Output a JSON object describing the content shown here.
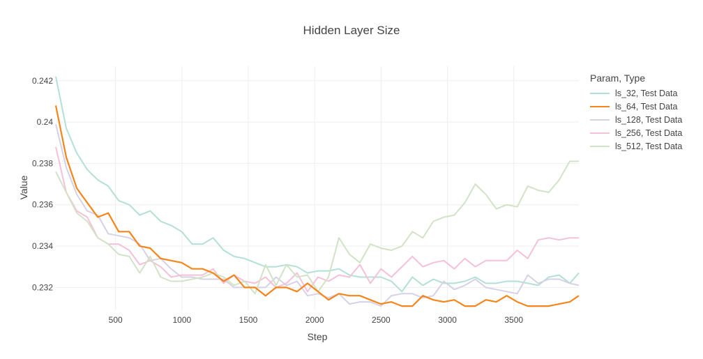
{
  "chart_data": {
    "type": "line",
    "title": "Hidden Layer Size",
    "xlabel": "Step",
    "ylabel": "Value",
    "xlim": [
      50,
      3990
    ],
    "ylim": [
      0.2309,
      0.2427
    ],
    "xticks": [
      500,
      1000,
      1500,
      2000,
      2500,
      3000,
      3500
    ],
    "xtick_labels": [
      "500",
      "1000",
      "1500",
      "2000",
      "2500",
      "3000",
      "3500"
    ],
    "yticks": [
      0.232,
      0.234,
      0.236,
      0.238,
      0.24,
      0.242
    ],
    "ytick_labels": [
      "0.232",
      "0.234",
      "0.236",
      "0.238",
      "0.24",
      "0.242"
    ],
    "grid": true,
    "legend_position": "top-right",
    "legend_title": "Param, Type",
    "x": [
      50,
      129,
      208,
      287,
      366,
      445,
      524,
      603,
      682,
      761,
      840,
      919,
      998,
      1077,
      1156,
      1235,
      1314,
      1393,
      1472,
      1551,
      1630,
      1709,
      1788,
      1867,
      1946,
      2025,
      2104,
      2183,
      2262,
      2341,
      2420,
      2499,
      2578,
      2657,
      2736,
      2815,
      2894,
      2973,
      3052,
      3131,
      3210,
      3289,
      3368,
      3447,
      3526,
      3605,
      3684,
      3763,
      3842,
      3921,
      3990
    ],
    "series": [
      {
        "name": "ls_32, Test Data",
        "color": "#b3e0d6",
        "width": 2,
        "values": [
          0.2422,
          0.2397,
          0.2385,
          0.2377,
          0.2372,
          0.2369,
          0.2362,
          0.236,
          0.2355,
          0.2357,
          0.2352,
          0.235,
          0.2347,
          0.2341,
          0.2341,
          0.2344,
          0.2338,
          0.2335,
          0.2334,
          0.2332,
          0.233,
          0.233,
          0.2331,
          0.233,
          0.2327,
          0.2328,
          0.2328,
          0.2329,
          0.2326,
          0.2325,
          0.2325,
          0.2325,
          0.2323,
          0.2318,
          0.2325,
          0.2321,
          0.2324,
          0.2322,
          0.2322,
          0.2323,
          0.2325,
          0.2322,
          0.2322,
          0.2323,
          0.2323,
          0.2322,
          0.2321,
          0.2325,
          0.2326,
          0.2322,
          0.2327
        ]
      },
      {
        "name": "ls_64, Test Data",
        "color": "#f58518",
        "width": 2.2,
        "values": [
          0.2408,
          0.2383,
          0.2368,
          0.2361,
          0.2354,
          0.2356,
          0.2347,
          0.2347,
          0.234,
          0.2339,
          0.2334,
          0.2333,
          0.2332,
          0.2329,
          0.2329,
          0.2327,
          0.2323,
          0.2326,
          0.232,
          0.232,
          0.2316,
          0.232,
          0.232,
          0.2318,
          0.2322,
          0.2318,
          0.2314,
          0.2317,
          0.2316,
          0.2316,
          0.2314,
          0.2312,
          0.2313,
          0.2311,
          0.2311,
          0.2316,
          0.2314,
          0.2313,
          0.2314,
          0.2311,
          0.2311,
          0.2314,
          0.2313,
          0.2316,
          0.2313,
          0.2311,
          0.2311,
          0.2311,
          0.2312,
          0.2313,
          0.2316
        ]
      },
      {
        "name": "ls_128, Test Data",
        "color": "#d6d1e6",
        "width": 2,
        "values": [
          0.2399,
          0.2378,
          0.2365,
          0.2357,
          0.2355,
          0.2346,
          0.2345,
          0.2344,
          0.2341,
          0.2333,
          0.2334,
          0.2329,
          0.2325,
          0.2325,
          0.2324,
          0.2324,
          0.2324,
          0.232,
          0.232,
          0.232,
          0.232,
          0.2325,
          0.2321,
          0.2323,
          0.2316,
          0.2317,
          0.2315,
          0.2317,
          0.2312,
          0.2313,
          0.2313,
          0.2311,
          0.2316,
          0.2317,
          0.2317,
          0.2315,
          0.2316,
          0.2323,
          0.2319,
          0.2321,
          0.2324,
          0.232,
          0.2319,
          0.2318,
          0.2317,
          0.2326,
          0.2322,
          0.2324,
          0.2324,
          0.2322,
          0.2321
        ]
      },
      {
        "name": "ls_256, Test Data",
        "color": "#f5c0d8",
        "width": 2,
        "values": [
          0.2388,
          0.2366,
          0.2357,
          0.2354,
          0.2344,
          0.2341,
          0.2341,
          0.2338,
          0.2331,
          0.2333,
          0.233,
          0.2325,
          0.2326,
          0.2326,
          0.2326,
          0.2329,
          0.2322,
          0.2326,
          0.2323,
          0.2322,
          0.2325,
          0.232,
          0.2322,
          0.2327,
          0.2318,
          0.2325,
          0.2323,
          0.2326,
          0.2325,
          0.2331,
          0.2322,
          0.2329,
          0.2325,
          0.233,
          0.2335,
          0.233,
          0.2332,
          0.2333,
          0.2329,
          0.2334,
          0.233,
          0.2333,
          0.2333,
          0.2333,
          0.2338,
          0.2334,
          0.2343,
          0.2344,
          0.2343,
          0.2344,
          0.2344
        ]
      },
      {
        "name": "ls_512, Test Data",
        "color": "#d1e3c6",
        "width": 2,
        "values": [
          0.2376,
          0.2366,
          0.2356,
          0.2352,
          0.2344,
          0.2341,
          0.2336,
          0.2335,
          0.2327,
          0.2335,
          0.2325,
          0.2323,
          0.2323,
          0.2324,
          0.2325,
          0.2327,
          0.2325,
          0.2321,
          0.2323,
          0.2317,
          0.2331,
          0.2321,
          0.2331,
          0.2325,
          0.2326,
          0.2318,
          0.2325,
          0.2344,
          0.2336,
          0.2332,
          0.2341,
          0.2339,
          0.2338,
          0.234,
          0.2347,
          0.2344,
          0.2352,
          0.2354,
          0.2355,
          0.2361,
          0.237,
          0.2365,
          0.2358,
          0.236,
          0.2359,
          0.2369,
          0.2367,
          0.2366,
          0.2372,
          0.2381,
          0.2381
        ]
      }
    ]
  }
}
